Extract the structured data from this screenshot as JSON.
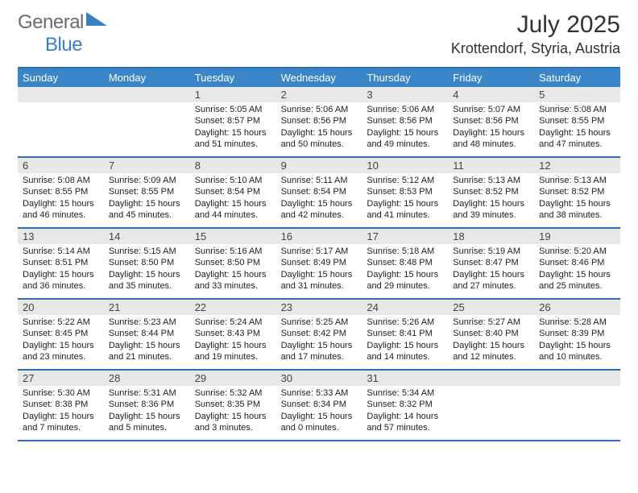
{
  "brand": {
    "part1": "General",
    "part2": "Blue"
  },
  "title": "July 2025",
  "location": "Krottendorf, Styria, Austria",
  "colors": {
    "header_bg": "#3a86c8",
    "rule": "#2d6fb3",
    "daynum_bg": "#e8e8e8"
  },
  "day_headers": [
    "Sunday",
    "Monday",
    "Tuesday",
    "Wednesday",
    "Thursday",
    "Friday",
    "Saturday"
  ],
  "weeks": [
    [
      {
        "n": "",
        "l": []
      },
      {
        "n": "",
        "l": []
      },
      {
        "n": "1",
        "l": [
          "Sunrise: 5:05 AM",
          "Sunset: 8:57 PM",
          "Daylight: 15 hours",
          "and 51 minutes."
        ]
      },
      {
        "n": "2",
        "l": [
          "Sunrise: 5:06 AM",
          "Sunset: 8:56 PM",
          "Daylight: 15 hours",
          "and 50 minutes."
        ]
      },
      {
        "n": "3",
        "l": [
          "Sunrise: 5:06 AM",
          "Sunset: 8:56 PM",
          "Daylight: 15 hours",
          "and 49 minutes."
        ]
      },
      {
        "n": "4",
        "l": [
          "Sunrise: 5:07 AM",
          "Sunset: 8:56 PM",
          "Daylight: 15 hours",
          "and 48 minutes."
        ]
      },
      {
        "n": "5",
        "l": [
          "Sunrise: 5:08 AM",
          "Sunset: 8:55 PM",
          "Daylight: 15 hours",
          "and 47 minutes."
        ]
      }
    ],
    [
      {
        "n": "6",
        "l": [
          "Sunrise: 5:08 AM",
          "Sunset: 8:55 PM",
          "Daylight: 15 hours",
          "and 46 minutes."
        ]
      },
      {
        "n": "7",
        "l": [
          "Sunrise: 5:09 AM",
          "Sunset: 8:55 PM",
          "Daylight: 15 hours",
          "and 45 minutes."
        ]
      },
      {
        "n": "8",
        "l": [
          "Sunrise: 5:10 AM",
          "Sunset: 8:54 PM",
          "Daylight: 15 hours",
          "and 44 minutes."
        ]
      },
      {
        "n": "9",
        "l": [
          "Sunrise: 5:11 AM",
          "Sunset: 8:54 PM",
          "Daylight: 15 hours",
          "and 42 minutes."
        ]
      },
      {
        "n": "10",
        "l": [
          "Sunrise: 5:12 AM",
          "Sunset: 8:53 PM",
          "Daylight: 15 hours",
          "and 41 minutes."
        ]
      },
      {
        "n": "11",
        "l": [
          "Sunrise: 5:13 AM",
          "Sunset: 8:52 PM",
          "Daylight: 15 hours",
          "and 39 minutes."
        ]
      },
      {
        "n": "12",
        "l": [
          "Sunrise: 5:13 AM",
          "Sunset: 8:52 PM",
          "Daylight: 15 hours",
          "and 38 minutes."
        ]
      }
    ],
    [
      {
        "n": "13",
        "l": [
          "Sunrise: 5:14 AM",
          "Sunset: 8:51 PM",
          "Daylight: 15 hours",
          "and 36 minutes."
        ]
      },
      {
        "n": "14",
        "l": [
          "Sunrise: 5:15 AM",
          "Sunset: 8:50 PM",
          "Daylight: 15 hours",
          "and 35 minutes."
        ]
      },
      {
        "n": "15",
        "l": [
          "Sunrise: 5:16 AM",
          "Sunset: 8:50 PM",
          "Daylight: 15 hours",
          "and 33 minutes."
        ]
      },
      {
        "n": "16",
        "l": [
          "Sunrise: 5:17 AM",
          "Sunset: 8:49 PM",
          "Daylight: 15 hours",
          "and 31 minutes."
        ]
      },
      {
        "n": "17",
        "l": [
          "Sunrise: 5:18 AM",
          "Sunset: 8:48 PM",
          "Daylight: 15 hours",
          "and 29 minutes."
        ]
      },
      {
        "n": "18",
        "l": [
          "Sunrise: 5:19 AM",
          "Sunset: 8:47 PM",
          "Daylight: 15 hours",
          "and 27 minutes."
        ]
      },
      {
        "n": "19",
        "l": [
          "Sunrise: 5:20 AM",
          "Sunset: 8:46 PM",
          "Daylight: 15 hours",
          "and 25 minutes."
        ]
      }
    ],
    [
      {
        "n": "20",
        "l": [
          "Sunrise: 5:22 AM",
          "Sunset: 8:45 PM",
          "Daylight: 15 hours",
          "and 23 minutes."
        ]
      },
      {
        "n": "21",
        "l": [
          "Sunrise: 5:23 AM",
          "Sunset: 8:44 PM",
          "Daylight: 15 hours",
          "and 21 minutes."
        ]
      },
      {
        "n": "22",
        "l": [
          "Sunrise: 5:24 AM",
          "Sunset: 8:43 PM",
          "Daylight: 15 hours",
          "and 19 minutes."
        ]
      },
      {
        "n": "23",
        "l": [
          "Sunrise: 5:25 AM",
          "Sunset: 8:42 PM",
          "Daylight: 15 hours",
          "and 17 minutes."
        ]
      },
      {
        "n": "24",
        "l": [
          "Sunrise: 5:26 AM",
          "Sunset: 8:41 PM",
          "Daylight: 15 hours",
          "and 14 minutes."
        ]
      },
      {
        "n": "25",
        "l": [
          "Sunrise: 5:27 AM",
          "Sunset: 8:40 PM",
          "Daylight: 15 hours",
          "and 12 minutes."
        ]
      },
      {
        "n": "26",
        "l": [
          "Sunrise: 5:28 AM",
          "Sunset: 8:39 PM",
          "Daylight: 15 hours",
          "and 10 minutes."
        ]
      }
    ],
    [
      {
        "n": "27",
        "l": [
          "Sunrise: 5:30 AM",
          "Sunset: 8:38 PM",
          "Daylight: 15 hours",
          "and 7 minutes."
        ]
      },
      {
        "n": "28",
        "l": [
          "Sunrise: 5:31 AM",
          "Sunset: 8:36 PM",
          "Daylight: 15 hours",
          "and 5 minutes."
        ]
      },
      {
        "n": "29",
        "l": [
          "Sunrise: 5:32 AM",
          "Sunset: 8:35 PM",
          "Daylight: 15 hours",
          "and 3 minutes."
        ]
      },
      {
        "n": "30",
        "l": [
          "Sunrise: 5:33 AM",
          "Sunset: 8:34 PM",
          "Daylight: 15 hours",
          "and 0 minutes."
        ]
      },
      {
        "n": "31",
        "l": [
          "Sunrise: 5:34 AM",
          "Sunset: 8:32 PM",
          "Daylight: 14 hours",
          "and 57 minutes."
        ]
      },
      {
        "n": "",
        "l": []
      },
      {
        "n": "",
        "l": []
      }
    ]
  ]
}
